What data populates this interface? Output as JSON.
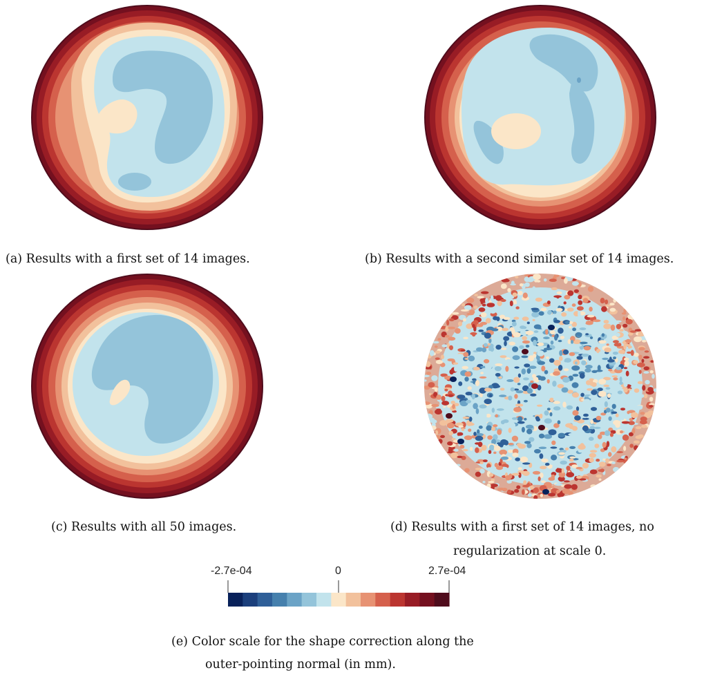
{
  "panels": [
    {
      "id": "a",
      "caption": "(a) Results with a first set of 14 images."
    },
    {
      "id": "b",
      "caption": "(b) Results with a second similar set of 14 images."
    },
    {
      "id": "c",
      "caption": "(c) Results with all 50 images."
    },
    {
      "id": "d",
      "caption_line1": "(d) Results with a first set of 14 images, no",
      "caption_line2": "regularization at scale 0."
    }
  ],
  "colorbar": {
    "min_label": "-2.7e-04",
    "mid_label": "0",
    "max_label": "2.7e-04",
    "min": -0.00027,
    "max": 0.00027,
    "colors": [
      "#08215a",
      "#1b3f7c",
      "#2f5f98",
      "#4680ad",
      "#6ba3c6",
      "#94c4da",
      "#c2e3ec",
      "#fbe6c8",
      "#f2c19c",
      "#e79273",
      "#d5604c",
      "#bb3530",
      "#981c25",
      "#74101f",
      "#4f0c1c"
    ]
  },
  "caption_e": {
    "line1": "(e) Color scale for the shape correction along the",
    "line2": "outer-pointing normal (in mm)."
  }
}
